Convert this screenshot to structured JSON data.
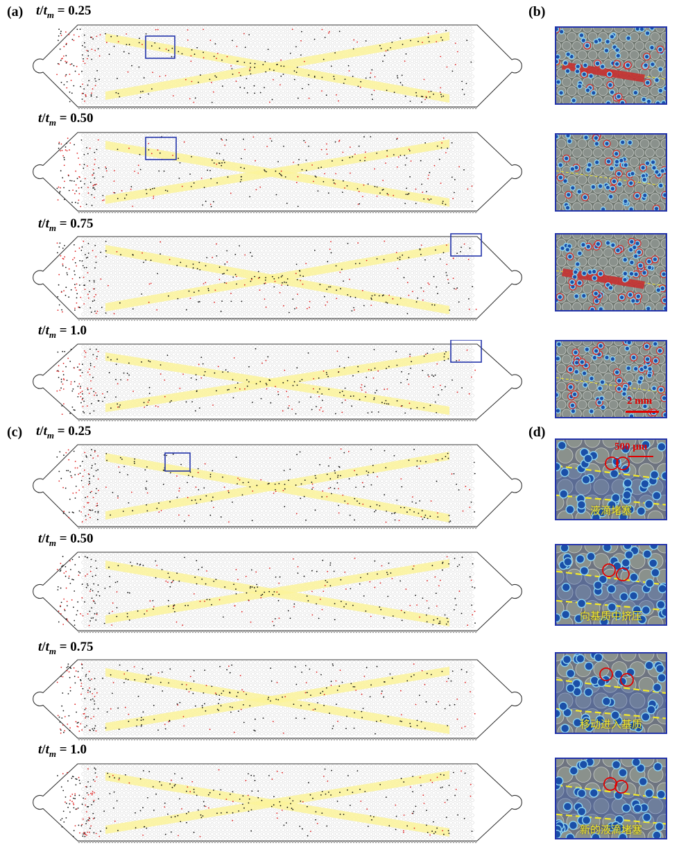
{
  "panels": {
    "a": {
      "letter": "(a)"
    },
    "b": {
      "letter": "(b)"
    },
    "c": {
      "letter": "(c)"
    },
    "d": {
      "letter": "(d)"
    }
  },
  "time_labels": [
    {
      "t": "t",
      "sub": "m",
      "value": " = 0.25"
    },
    {
      "t": "t",
      "sub": "m",
      "value": " = 0.50"
    },
    {
      "t": "t",
      "sub": "m",
      "value": " = 0.75"
    },
    {
      "t": "t",
      "sub": "m",
      "value": " = 1.0"
    },
    {
      "t": "t",
      "sub": "m",
      "value": " = 0.25"
    },
    {
      "t": "t",
      "sub": "m",
      "value": " = 0.50"
    },
    {
      "t": "t",
      "sub": "m",
      "value": " = 0.75"
    },
    {
      "t": "t",
      "sub": "m",
      "value": " = 1.0"
    }
  ],
  "scale_bars": {
    "b": "2 mm",
    "d": "500 μm"
  },
  "zoom_captions_d": [
    "液滴堵塞",
    "向基质中挤压",
    "移动进入基质",
    "新的液滴堵塞"
  ],
  "colors": {
    "band": "#fbf39a",
    "box": "#2233aa",
    "droplet_core": "#1a4fa8",
    "droplet_halo": "#8ed3f0",
    "red_mark": "#e02020",
    "caption": "#f4ea2a"
  }
}
